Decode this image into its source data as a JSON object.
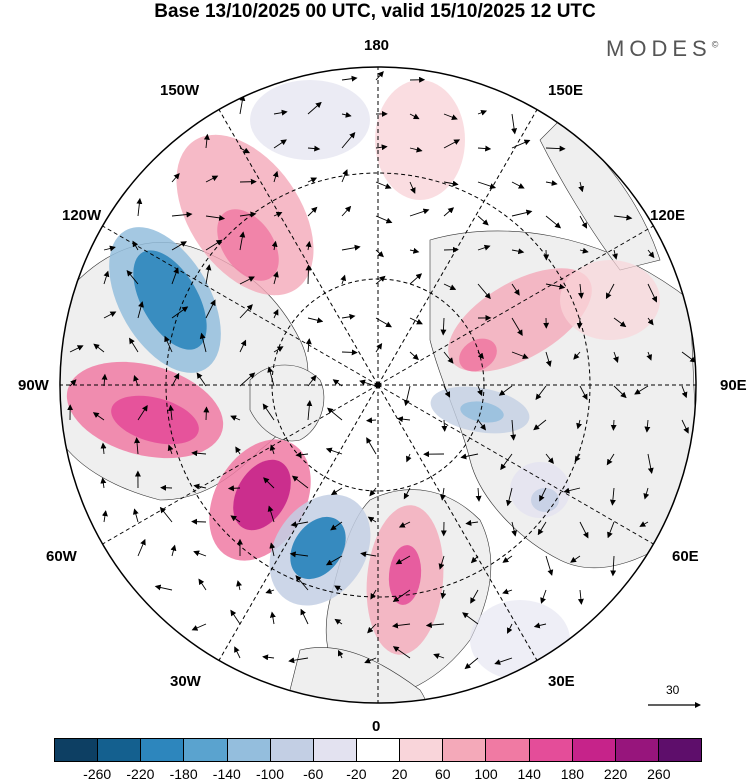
{
  "title": "Base 13/10/2025 00 UTC, valid 15/10/2025 12 UTC",
  "brand": "MODES",
  "brand_mark": "©",
  "longitude_labels": {
    "top": "180",
    "bottom": "0",
    "left": "90W",
    "right": "90E",
    "upper_left_1": "150W",
    "upper_left_2": "120W",
    "upper_right_1": "150E",
    "upper_right_2": "120E",
    "lower_left_1": "60W",
    "lower_left_2": "30W",
    "lower_right_1": "60E",
    "lower_right_2": "30E"
  },
  "vector_scale": {
    "label": "30"
  },
  "colorbar": {
    "colors": [
      "#0d3f63",
      "#14608f",
      "#2d86bd",
      "#5aa3cf",
      "#94bedd",
      "#c3cfe4",
      "#e3e2f0",
      "#ffffff",
      "#f9d5da",
      "#f4a9b9",
      "#f07aa3",
      "#e44d99",
      "#c6238a",
      "#97157c",
      "#5e0e6b"
    ],
    "ticks": [
      "-260",
      "-220",
      "-180",
      "-140",
      "-100",
      "-60",
      "-20",
      "20",
      "60",
      "100",
      "140",
      "180",
      "220",
      "260"
    ]
  },
  "map_colors": {
    "land": "#efefef",
    "ocean": "#ffffff",
    "grid": "#000000"
  }
}
